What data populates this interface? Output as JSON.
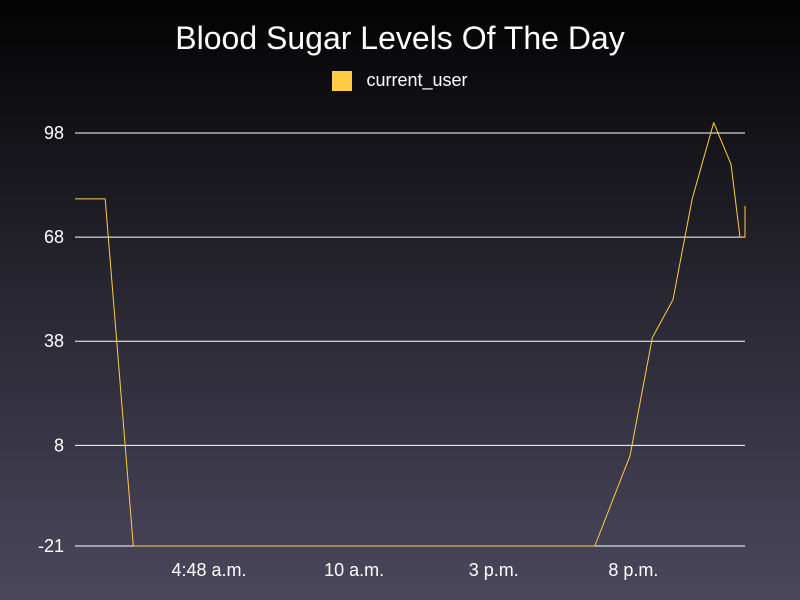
{
  "colors": {
    "series": "#ffcc44",
    "grid": "#ffffff",
    "text": "#ffffff"
  },
  "chart_data": {
    "type": "line",
    "title": "Blood Sugar Levels Of The Day",
    "xlabel": "",
    "ylabel": "",
    "ylim": [
      -21,
      98
    ],
    "yticks": [
      98,
      68,
      38,
      8,
      -21
    ],
    "xlim": [
      0,
      24
    ],
    "xticks": [
      {
        "x": 4.8,
        "label": "4:48 a.m."
      },
      {
        "x": 10,
        "label": "10 a.m."
      },
      {
        "x": 15,
        "label": "3 p.m."
      },
      {
        "x": 20,
        "label": "8 p.m."
      }
    ],
    "grid": true,
    "legend_position": "top-center",
    "series": [
      {
        "name": "current_user",
        "color": "#ffcc44",
        "x": [
          0,
          1.08,
          2.09,
          18.62,
          19.88,
          20.68,
          21.42,
          22.11,
          22.88,
          23.5,
          23.82,
          24.16,
          24.42
        ],
        "y": [
          79,
          79,
          -21,
          -21,
          5,
          39,
          50,
          79,
          101,
          89,
          68,
          68,
          77
        ]
      }
    ]
  }
}
